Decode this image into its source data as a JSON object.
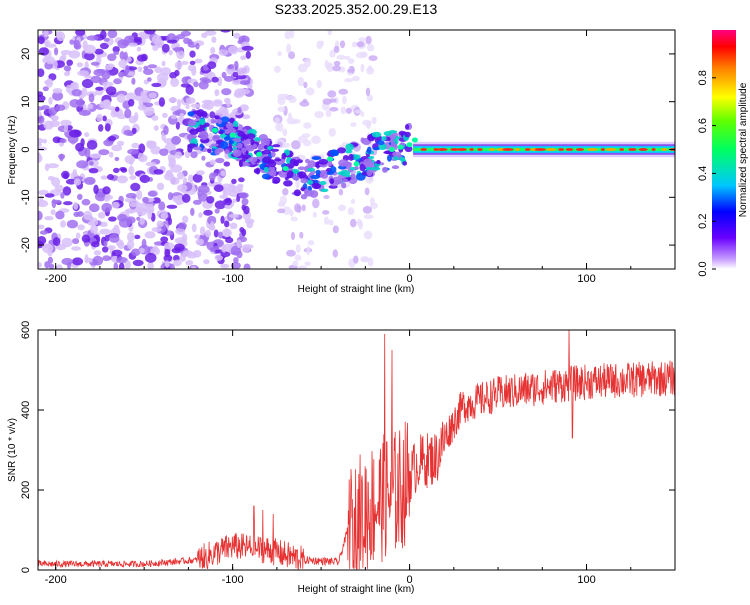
{
  "title": "S233.2025.352.00.29.E13",
  "chart_data": [
    {
      "type": "heatmap",
      "xlabel": "Height of straight line (km)",
      "ylabel": "Frequency (Hz)",
      "xlim": [
        -210,
        150
      ],
      "ylim": [
        -25,
        25
      ],
      "x_ticks": [
        -200,
        -100,
        0,
        100
      ],
      "x_tick_labels": [
        "-200",
        "-100",
        "0",
        "100"
      ],
      "y_ticks": [
        20,
        10,
        0,
        -10,
        -20
      ],
      "y_tick_labels": [
        "20",
        "10",
        "0",
        "-10",
        "-20"
      ],
      "colorbar": {
        "label": "Normalized spectral amplitude",
        "range": [
          0,
          1
        ],
        "ticks": [
          0.0,
          0.2,
          0.4,
          0.6,
          0.8
        ],
        "tick_labels": [
          "0.0",
          "0.2",
          "0.4",
          "0.6",
          "0.8"
        ]
      },
      "signal_trace": {
        "description_x": [
          -120,
          -100,
          -80,
          -60,
          -40,
          -20,
          0,
          20,
          50,
          100,
          150
        ],
        "frequency": [
          4,
          2,
          -2,
          -6,
          -4,
          -1,
          1,
          0,
          0,
          0,
          0
        ],
        "amplitude": [
          0.2,
          0.25,
          0.3,
          0.2,
          0.3,
          0.35,
          0.6,
          0.9,
          0.9,
          0.9,
          0.85
        ]
      }
    },
    {
      "type": "line",
      "xlabel": "Height of straight line (km)",
      "ylabel": "SNR (10 * v/v)",
      "xlim": [
        -210,
        150
      ],
      "ylim": [
        0,
        600
      ],
      "x_ticks": [
        -200,
        -100,
        0,
        100
      ],
      "x_tick_labels": [
        "-200",
        "-100",
        "0",
        "100"
      ],
      "y_ticks": [
        0,
        200,
        400,
        600
      ],
      "y_tick_labels": [
        "0",
        "200",
        "400",
        "600"
      ],
      "color": "#e63232",
      "baseline_x": [
        -210,
        -150,
        -120,
        -100,
        -80,
        -60,
        -40,
        -35,
        -25,
        -15,
        -5,
        5,
        15,
        20,
        30,
        50,
        80,
        100,
        150
      ],
      "baseline_y": [
        15,
        15,
        25,
        60,
        50,
        25,
        20,
        100,
        150,
        180,
        200,
        270,
        280,
        330,
        410,
        440,
        460,
        470,
        480
      ],
      "spikes": [
        {
          "x": -88,
          "y": 160
        },
        {
          "x": -83,
          "y": 150
        },
        {
          "x": -77,
          "y": 140
        },
        {
          "x": -14,
          "y": 590
        },
        {
          "x": -10,
          "y": 550
        },
        {
          "x": 90,
          "y": 600
        },
        {
          "x": 92,
          "y": 330
        }
      ]
    }
  ]
}
